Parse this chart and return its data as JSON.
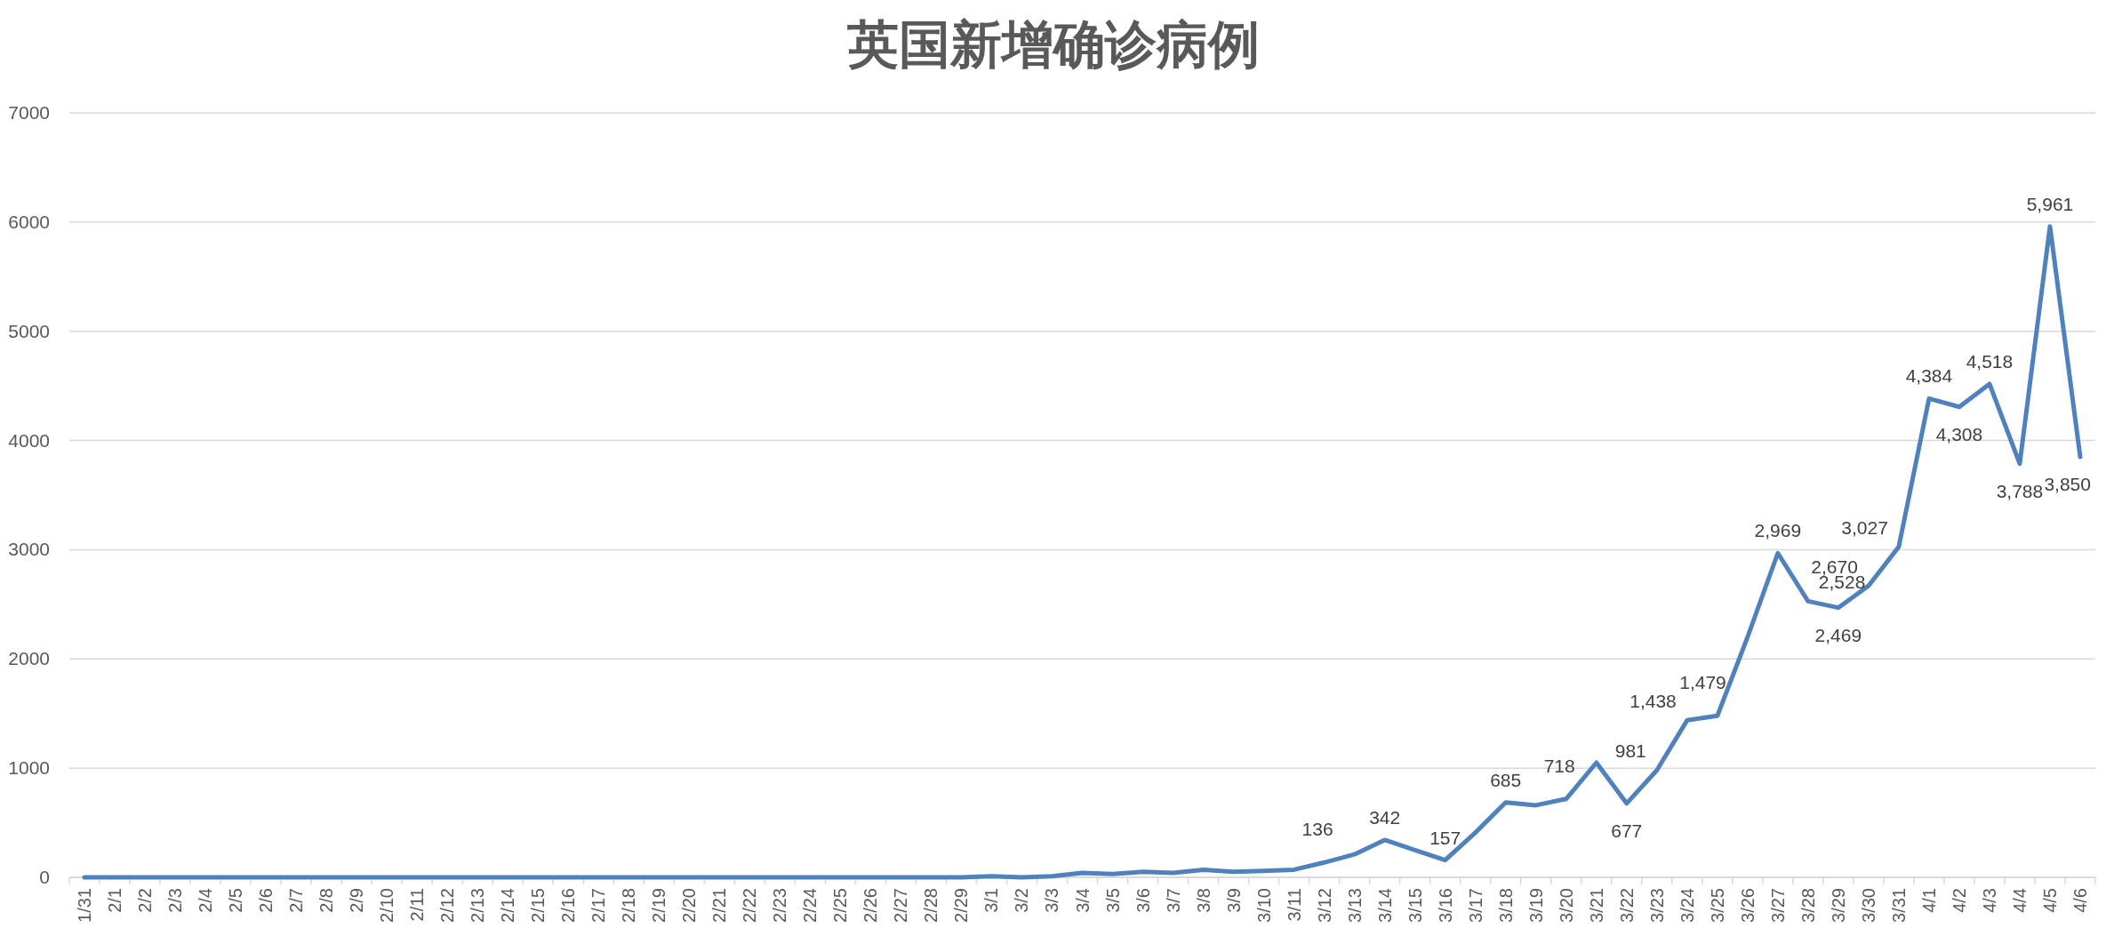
{
  "chart_data": {
    "type": "line",
    "title": "英国新增确诊病例",
    "categories": [
      "1/31",
      "2/1",
      "2/2",
      "2/3",
      "2/4",
      "2/5",
      "2/6",
      "2/7",
      "2/8",
      "2/9",
      "2/10",
      "2/11",
      "2/12",
      "2/13",
      "2/14",
      "2/15",
      "2/16",
      "2/17",
      "2/18",
      "2/19",
      "2/20",
      "2/21",
      "2/22",
      "2/23",
      "2/24",
      "2/25",
      "2/26",
      "2/27",
      "2/28",
      "2/29",
      "3/1",
      "3/2",
      "3/3",
      "3/4",
      "3/5",
      "3/6",
      "3/7",
      "3/8",
      "3/9",
      "3/10",
      "3/11",
      "3/12",
      "3/13",
      "3/14",
      "3/15",
      "3/16",
      "3/17",
      "3/18",
      "3/19",
      "3/20",
      "3/21",
      "3/22",
      "3/23",
      "3/24",
      "3/25",
      "3/26",
      "3/27",
      "3/28",
      "3/29",
      "3/30",
      "3/31",
      "4/1",
      "4/2",
      "4/3",
      "4/4",
      "4/5",
      "4/6"
    ],
    "series": [
      {
        "color": "#4f81bd",
        "values": [
          0,
          0,
          0,
          0,
          0,
          0,
          0,
          0,
          0,
          0,
          0,
          0,
          0,
          0,
          0,
          0,
          0,
          0,
          0,
          0,
          0,
          0,
          0,
          0,
          0,
          0,
          0,
          0,
          0,
          0,
          10,
          0,
          10,
          40,
          30,
          50,
          40,
          70,
          50,
          60,
          70,
          136,
          210,
          342,
          250,
          157,
          410,
          685,
          660,
          718,
          1050,
          677,
          981,
          1438,
          1479,
          2200,
          2969,
          2528,
          2469,
          2670,
          3027,
          4384,
          4308,
          4518,
          3788,
          5961,
          3850
        ],
        "value_labels": [
          null,
          null,
          null,
          null,
          null,
          null,
          null,
          null,
          null,
          null,
          null,
          null,
          null,
          null,
          null,
          null,
          null,
          null,
          null,
          null,
          null,
          null,
          null,
          null,
          null,
          null,
          null,
          null,
          null,
          null,
          null,
          null,
          null,
          null,
          null,
          null,
          null,
          null,
          null,
          null,
          null,
          "136",
          null,
          "342",
          null,
          "157",
          null,
          "685",
          null,
          "718",
          null,
          "677",
          "981",
          "1,438",
          "1,479",
          null,
          "2,969",
          "2,528",
          "2,469",
          "2,670",
          "3,027",
          "4,384",
          "4,308",
          "4,518",
          "3,788",
          "5,961",
          "3,850"
        ]
      }
    ],
    "ylim": [
      0,
      7000
    ],
    "yticks": [
      0,
      1000,
      2000,
      3000,
      4000,
      5000,
      6000,
      7000
    ],
    "grid": "y",
    "marker": "none",
    "line_style": "solid"
  }
}
